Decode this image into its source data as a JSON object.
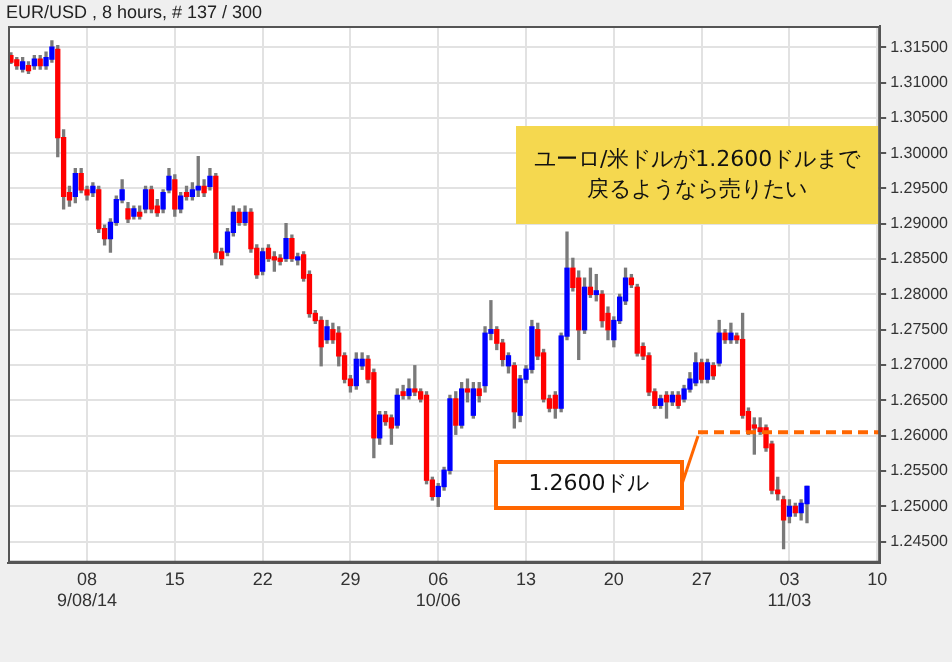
{
  "chart_data": {
    "type": "candlestick",
    "title": "EUR/USD , 8 hours, # 137 / 300",
    "ohlc": [
      [
        1.3138,
        1.3142,
        1.3127,
        1.3129
      ],
      [
        1.3132,
        1.3135,
        1.3119,
        1.3124
      ],
      [
        1.3119,
        1.3135,
        1.3115,
        1.3129
      ],
      [
        1.3124,
        1.3129,
        1.3113,
        1.3117
      ],
      [
        1.3124,
        1.3138,
        1.3119,
        1.3133
      ],
      [
        1.3133,
        1.3138,
        1.3119,
        1.3124
      ],
      [
        1.3124,
        1.3143,
        1.3119,
        1.3135
      ],
      [
        1.3133,
        1.3159,
        1.3129,
        1.315
      ],
      [
        1.3147,
        1.3152,
        1.2995,
        1.3022
      ],
      [
        1.3022,
        1.3033,
        1.2921,
        1.2939
      ],
      [
        1.2944,
        1.2953,
        1.2925,
        1.2934
      ],
      [
        1.2939,
        1.2978,
        1.293,
        1.2971
      ],
      [
        1.2971,
        1.2978,
        1.2944,
        1.2948
      ],
      [
        1.2948,
        1.2953,
        1.2934,
        1.2941
      ],
      [
        1.2944,
        1.2958,
        1.2939,
        1.2953
      ],
      [
        1.2948,
        1.2953,
        1.2888,
        1.2893
      ],
      [
        1.2893,
        1.2898,
        1.287,
        1.2879
      ],
      [
        1.2879,
        1.2907,
        1.286,
        1.2902
      ],
      [
        1.2902,
        1.2939,
        1.2898,
        1.2934
      ],
      [
        1.2934,
        1.2962,
        1.293,
        1.2948
      ],
      [
        1.2921,
        1.293,
        1.2902,
        1.2907
      ],
      [
        1.2911,
        1.2925,
        1.2907,
        1.2921
      ],
      [
        1.2916,
        1.2925,
        1.2907,
        1.2911
      ],
      [
        1.2921,
        1.2953,
        1.2916,
        1.2948
      ],
      [
        1.2948,
        1.2953,
        1.2916,
        1.2921
      ],
      [
        1.2925,
        1.2934,
        1.2911,
        1.2916
      ],
      [
        1.2921,
        1.2948,
        1.2916,
        1.2944
      ],
      [
        1.2948,
        1.2978,
        1.2944,
        1.2967
      ],
      [
        1.2962,
        1.2969,
        1.2911,
        1.2921
      ],
      [
        1.2921,
        1.2944,
        1.2916,
        1.2939
      ],
      [
        1.2944,
        1.2953,
        1.2934,
        1.2939
      ],
      [
        1.2939,
        1.2958,
        1.2934,
        1.2948
      ],
      [
        1.2948,
        1.2995,
        1.2939,
        1.2953
      ],
      [
        1.2953,
        1.2962,
        1.2939,
        1.2944
      ],
      [
        1.2953,
        1.2978,
        1.2948,
        1.2967
      ],
      [
        1.2967,
        1.2971,
        1.2851,
        1.286
      ],
      [
        1.286,
        1.2865,
        1.2842,
        1.2851
      ],
      [
        1.286,
        1.2893,
        1.2855,
        1.2888
      ],
      [
        1.2888,
        1.2925,
        1.2883,
        1.2916
      ],
      [
        1.2916,
        1.2921,
        1.2898,
        1.2902
      ],
      [
        1.2902,
        1.2925,
        1.2898,
        1.2916
      ],
      [
        1.2916,
        1.2921,
        1.286,
        1.2865
      ],
      [
        1.2865,
        1.287,
        1.2823,
        1.2828
      ],
      [
        1.2833,
        1.2865,
        1.2828,
        1.286
      ],
      [
        1.2865,
        1.287,
        1.2847,
        1.2851
      ],
      [
        1.2853,
        1.286,
        1.2833,
        1.2849
      ],
      [
        1.2851,
        1.2856,
        1.2842,
        1.2847
      ],
      [
        1.2851,
        1.29,
        1.2847,
        1.2879
      ],
      [
        1.2879,
        1.2884,
        1.2847,
        1.2851
      ],
      [
        1.2849,
        1.2858,
        1.2842,
        1.2853
      ],
      [
        1.2856,
        1.286,
        1.2819,
        1.2823
      ],
      [
        1.2828,
        1.2833,
        1.2768,
        1.2773
      ],
      [
        1.2773,
        1.2777,
        1.2759,
        1.2763
      ],
      [
        1.2763,
        1.2768,
        1.2699,
        1.2726
      ],
      [
        1.2736,
        1.2763,
        1.2731,
        1.2754
      ],
      [
        1.275,
        1.2759,
        1.2731,
        1.2736
      ],
      [
        1.2745,
        1.2754,
        1.2699,
        1.2713
      ],
      [
        1.2713,
        1.2717,
        1.2675,
        1.268
      ],
      [
        1.268,
        1.2685,
        1.2662,
        1.2671
      ],
      [
        1.2671,
        1.2717,
        1.2666,
        1.2708
      ],
      [
        1.2699,
        1.2717,
        1.2694,
        1.2708
      ],
      [
        1.2708,
        1.2713,
        1.2675,
        1.268
      ],
      [
        1.2689,
        1.2694,
        1.2569,
        1.2597
      ],
      [
        1.2597,
        1.2634,
        1.2588,
        1.2629
      ],
      [
        1.2629,
        1.2634,
        1.2615,
        1.262
      ],
      [
        1.2625,
        1.2629,
        1.2588,
        1.2611
      ],
      [
        1.2615,
        1.2666,
        1.2611,
        1.2657
      ],
      [
        1.2662,
        1.2671,
        1.2652,
        1.2657
      ],
      [
        1.2657,
        1.268,
        1.2652,
        1.2666
      ],
      [
        1.2666,
        1.2699,
        1.2657,
        1.2662
      ],
      [
        1.2662,
        1.2666,
        1.2648,
        1.2652
      ],
      [
        1.2657,
        1.2662,
        1.2532,
        1.2537
      ],
      [
        1.2537,
        1.2541,
        1.2509,
        1.2514
      ],
      [
        1.2514,
        1.2532,
        1.25,
        1.2528
      ],
      [
        1.2528,
        1.2555,
        1.2523,
        1.2551
      ],
      [
        1.2551,
        1.2657,
        1.2546,
        1.2652
      ],
      [
        1.2652,
        1.2662,
        1.2602,
        1.2615
      ],
      [
        1.2615,
        1.2675,
        1.2611,
        1.2666
      ],
      [
        1.2666,
        1.268,
        1.2648,
        1.2662
      ],
      [
        1.2629,
        1.2675,
        1.2625,
        1.2666
      ],
      [
        1.2666,
        1.2675,
        1.2648,
        1.2657
      ],
      [
        1.2671,
        1.2754,
        1.2662,
        1.2745
      ],
      [
        1.2745,
        1.2791,
        1.2736,
        1.275
      ],
      [
        1.275,
        1.2754,
        1.2722,
        1.2731
      ],
      [
        1.2731,
        1.2736,
        1.2699,
        1.2708
      ],
      [
        1.2699,
        1.2717,
        1.2689,
        1.2713
      ],
      [
        1.2699,
        1.2703,
        1.2611,
        1.2634
      ],
      [
        1.2629,
        1.2685,
        1.262,
        1.268
      ],
      [
        1.268,
        1.2699,
        1.2675,
        1.2694
      ],
      [
        1.2694,
        1.2763,
        1.2689,
        1.2754
      ],
      [
        1.275,
        1.2759,
        1.2708,
        1.2713
      ],
      [
        1.2717,
        1.2722,
        1.2648,
        1.2652
      ],
      [
        1.2652,
        1.2657,
        1.2634,
        1.2639
      ],
      [
        1.2657,
        1.2662,
        1.2625,
        1.2639
      ],
      [
        1.2639,
        1.2745,
        1.2634,
        1.2741
      ],
      [
        1.2741,
        1.2888,
        1.2736,
        1.2837
      ],
      [
        1.2837,
        1.2851,
        1.2805,
        1.281
      ],
      [
        1.2823,
        1.2833,
        1.2708,
        1.275
      ],
      [
        1.275,
        1.2823,
        1.2745,
        1.281
      ],
      [
        1.281,
        1.2837,
        1.2796,
        1.28
      ],
      [
        1.28,
        1.2828,
        1.2791,
        1.2805
      ],
      [
        1.28,
        1.2805,
        1.2754,
        1.2763
      ],
      [
        1.2773,
        1.2782,
        1.2736,
        1.275
      ],
      [
        1.2736,
        1.2768,
        1.2726,
        1.2763
      ],
      [
        1.2763,
        1.28,
        1.2759,
        1.2796
      ],
      [
        1.2791,
        1.2837,
        1.2786,
        1.2823
      ],
      [
        1.2823,
        1.2828,
        1.281,
        1.2814
      ],
      [
        1.281,
        1.2814,
        1.2713,
        1.2717
      ],
      [
        1.2726,
        1.2731,
        1.2708,
        1.2713
      ],
      [
        1.2713,
        1.2717,
        1.2657,
        1.2662
      ],
      [
        1.2662,
        1.2666,
        1.2639,
        1.2643
      ],
      [
        1.2643,
        1.2657,
        1.2639,
        1.2652
      ],
      [
        1.2657,
        1.2662,
        1.2625,
        1.2648
      ],
      [
        1.2648,
        1.2662,
        1.2643,
        1.2657
      ],
      [
        1.2657,
        1.2662,
        1.2639,
        1.2643
      ],
      [
        1.2652,
        1.2671,
        1.2648,
        1.2666
      ],
      [
        1.2666,
        1.2689,
        1.2662,
        1.268
      ],
      [
        1.2675,
        1.2717,
        1.2671,
        1.2703
      ],
      [
        1.2703,
        1.2708,
        1.2675,
        1.268
      ],
      [
        1.268,
        1.2708,
        1.2675,
        1.2703
      ],
      [
        1.2699,
        1.2703,
        1.268,
        1.2685
      ],
      [
        1.2703,
        1.2763,
        1.2699,
        1.2745
      ],
      [
        1.2745,
        1.275,
        1.2731,
        1.2736
      ],
      [
        1.2736,
        1.2759,
        1.2731,
        1.2745
      ],
      [
        1.2741,
        1.2745,
        1.2731,
        1.2736
      ],
      [
        1.2736,
        1.2773,
        1.2625,
        1.2629
      ],
      [
        1.2634,
        1.2639,
        1.2602,
        1.2606
      ],
      [
        1.2615,
        1.2625,
        1.2574,
        1.2611
      ],
      [
        1.2611,
        1.2625,
        1.2602,
        1.2606
      ],
      [
        1.2611,
        1.2615,
        1.2578,
        1.2583
      ],
      [
        1.2588,
        1.2592,
        1.2518,
        1.2523
      ],
      [
        1.2523,
        1.2541,
        1.2509,
        1.2518
      ],
      [
        1.2509,
        1.2514,
        1.244,
        1.2481
      ],
      [
        1.2486,
        1.2509,
        1.2477,
        1.25
      ],
      [
        1.25,
        1.2504,
        1.2486,
        1.2491
      ],
      [
        1.2491,
        1.2509,
        1.2481,
        1.2504
      ],
      [
        1.2504,
        1.2528,
        1.2477,
        1.2528
      ],
      null,
      null,
      null,
      null,
      null,
      null,
      null,
      null,
      null,
      null,
      null,
      null
    ],
    "colors": [
      "#ff0000",
      "#ff0000",
      "#0000ff",
      "#ff0000",
      "#0000ff",
      "#ff0000",
      "#0000ff",
      "#0000ff",
      "#ff0000",
      "#ff0000",
      "#ff0000",
      "#0000ff",
      "#ff0000",
      "#ff0000",
      "#0000ff",
      "#ff0000",
      "#ff0000",
      "#0000ff",
      "#0000ff",
      "#0000ff",
      "#ff0000",
      "#0000ff",
      "#ff0000",
      "#0000ff",
      "#ff0000",
      "#ff0000",
      "#0000ff",
      "#0000ff",
      "#ff0000",
      "#0000ff",
      "#ff0000",
      "#0000ff",
      "#0000ff",
      "#ff0000",
      "#0000ff",
      "#ff0000",
      "#ff0000",
      "#0000ff",
      "#0000ff",
      "#ff0000",
      "#0000ff",
      "#ff0000",
      "#ff0000",
      "#0000ff",
      "#ff0000",
      "#ff0000",
      "#ff0000",
      "#0000ff",
      "#ff0000",
      "#0000ff",
      "#ff0000",
      "#ff0000",
      "#ff0000",
      "#ff0000",
      "#0000ff",
      "#ff0000",
      "#ff0000",
      "#ff0000",
      "#ff0000",
      "#0000ff",
      "#0000ff",
      "#ff0000",
      "#ff0000",
      "#0000ff",
      "#ff0000",
      "#ff0000",
      "#0000ff",
      "#ff0000",
      "#0000ff",
      "#ff0000",
      "#ff0000",
      "#ff0000",
      "#ff0000",
      "#0000ff",
      "#0000ff",
      "#0000ff",
      "#ff0000",
      "#0000ff",
      "#ff0000",
      "#0000ff",
      "#ff0000",
      "#0000ff",
      "#0000ff",
      "#ff0000",
      "#ff0000",
      "#0000ff",
      "#ff0000",
      "#0000ff",
      "#0000ff",
      "#0000ff",
      "#ff0000",
      "#ff0000",
      "#ff0000",
      "#ff0000",
      "#0000ff",
      "#0000ff",
      "#ff0000",
      "#ff0000",
      "#0000ff",
      "#ff0000",
      "#0000ff",
      "#ff0000",
      "#ff0000",
      "#0000ff",
      "#0000ff",
      "#0000ff",
      "#ff0000",
      "#ff0000",
      "#ff0000",
      "#ff0000",
      "#ff0000",
      "#0000ff",
      "#ff0000",
      "#0000ff",
      "#ff0000",
      "#0000ff",
      "#0000ff",
      "#0000ff",
      "#ff0000",
      "#0000ff",
      "#ff0000",
      "#0000ff",
      "#ff0000",
      "#0000ff",
      "#ff0000",
      "#ff0000",
      "#ff0000",
      "#ff0000",
      "#ff0000",
      "#ff0000",
      "#ff0000",
      "#ff0000",
      "#ff0000",
      "#0000ff",
      "#ff0000",
      "#0000ff",
      "#0000ff",
      null,
      null,
      null,
      null,
      null,
      null,
      null,
      null,
      null,
      null,
      null,
      null
    ],
    "categories": [
      null,
      null,
      null,
      null,
      null,
      null,
      null,
      null,
      null,
      null,
      null,
      null,
      null,
      "08\n9/08/14",
      null,
      null,
      null,
      null,
      null,
      null,
      null,
      null,
      null,
      null,
      null,
      null,
      null,
      null,
      "15",
      null,
      null,
      null,
      null,
      null,
      null,
      null,
      null,
      null,
      null,
      null,
      null,
      null,
      null,
      "22",
      null,
      null,
      null,
      null,
      null,
      null,
      null,
      null,
      null,
      null,
      null,
      null,
      null,
      null,
      "29",
      null,
      null,
      null,
      null,
      null,
      null,
      null,
      null,
      null,
      null,
      null,
      null,
      null,
      null,
      "06\n10/06",
      null,
      null,
      null,
      null,
      null,
      null,
      null,
      null,
      null,
      null,
      null,
      null,
      null,
      null,
      "13",
      null,
      null,
      null,
      null,
      null,
      null,
      null,
      null,
      null,
      null,
      null,
      null,
      null,
      null,
      "20",
      null,
      null,
      null,
      null,
      null,
      null,
      null,
      null,
      null,
      null,
      null,
      null,
      null,
      null,
      "27",
      null,
      null,
      null,
      null,
      null,
      null,
      null,
      null,
      null,
      null,
      null,
      null,
      null,
      null,
      "03\n11/03",
      null,
      null,
      null,
      null,
      null,
      null,
      null,
      null,
      null,
      null,
      null,
      null,
      null,
      null,
      "10"
    ],
    "ylim": [
      1.242,
      1.318
    ],
    "yticks": [
      {
        "value": 1.245,
        "label": "1.24500"
      },
      {
        "value": 1.25,
        "label": "1.25000"
      },
      {
        "value": 1.255,
        "label": "1.25500"
      },
      {
        "value": 1.26,
        "label": "1.26000"
      },
      {
        "value": 1.265,
        "label": "1.26500"
      },
      {
        "value": 1.27,
        "label": "1.27000"
      },
      {
        "value": 1.275,
        "label": "1.27500"
      },
      {
        "value": 1.28,
        "label": "1.28000"
      },
      {
        "value": 1.285,
        "label": "1.28500"
      },
      {
        "value": 1.29,
        "label": "1.29000"
      },
      {
        "value": 1.295,
        "label": "1.29500"
      },
      {
        "value": 1.3,
        "label": "1.30000"
      },
      {
        "value": 1.305,
        "label": "1.30500"
      },
      {
        "value": 1.31,
        "label": "1.31000"
      },
      {
        "value": 1.315,
        "label": "1.31500"
      }
    ],
    "grid": true,
    "ref_lines": [
      {
        "axis": "y",
        "value": 1.2605,
        "label": "1.2600ドル",
        "color": "#ff6600",
        "line_style": "dashed"
      }
    ],
    "annotations": [
      "ユーロ/米ドルが1.2600ドルまで戻るようなら売りたい"
    ]
  }
}
